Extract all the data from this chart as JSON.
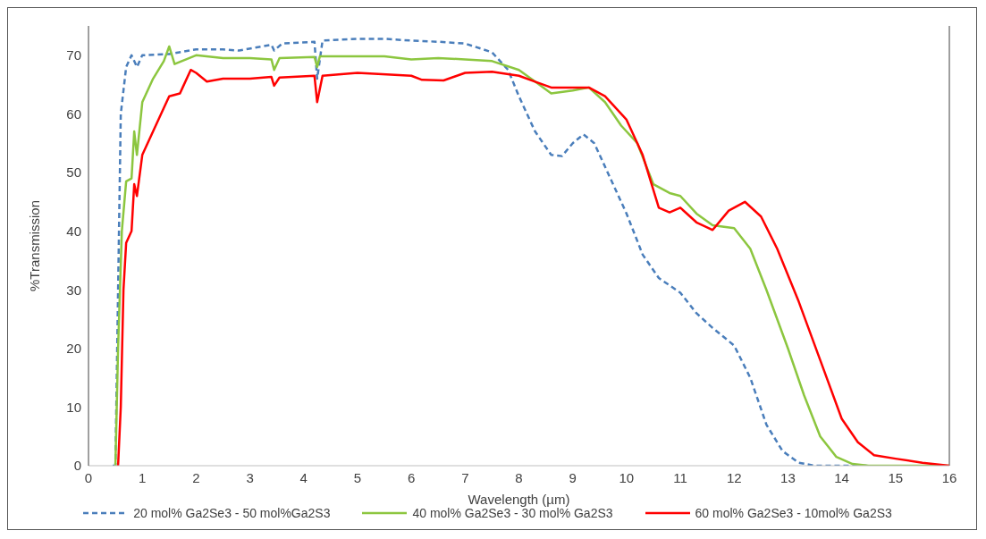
{
  "chart_data": {
    "type": "line",
    "xlabel": "Wavelength (µm)",
    "ylabel": "%Transmission",
    "xlim": [
      0,
      16
    ],
    "xticks": [
      0,
      1,
      2,
      3,
      4,
      5,
      6,
      7,
      8,
      9,
      10,
      11,
      12,
      13,
      14,
      15,
      16
    ],
    "ylim": [
      0,
      75
    ],
    "yticks": [
      0,
      10,
      20,
      30,
      40,
      50,
      60,
      70
    ],
    "grid": false,
    "legend": "bottom",
    "marker": "none",
    "series": [
      {
        "name": "20 mol% Ga2Se3 - 50 mol%Ga2S3",
        "color": "#4a7ebb",
        "line_style": "dashed",
        "x": [
          0.45,
          0.5,
          0.55,
          0.6,
          0.7,
          0.8,
          0.9,
          1.0,
          1.5,
          2,
          2.5,
          2.8,
          3.4,
          3.45,
          3.6,
          4.2,
          4.25,
          4.35,
          5,
          5.5,
          6,
          6.5,
          7,
          7.5,
          7.8,
          8,
          8.3,
          8.6,
          8.8,
          9,
          9.2,
          9.4,
          9.7,
          10,
          10.3,
          10.6,
          11,
          11.3,
          11.6,
          12,
          12.3,
          12.6,
          12.9,
          13.2,
          13.5,
          14,
          14.5
        ],
        "values": [
          0,
          0,
          30,
          60,
          68,
          70,
          68,
          70,
          70.2,
          71,
          71,
          70.8,
          71.8,
          70.8,
          72,
          72.3,
          66,
          72.5,
          72.8,
          72.8,
          72.5,
          72.3,
          72,
          70.5,
          67.5,
          63,
          57,
          53,
          52.8,
          55,
          56.5,
          55,
          49,
          43,
          36,
          32,
          29.5,
          26,
          23.5,
          20.5,
          15,
          7,
          2.5,
          0.5,
          0,
          0,
          0
        ]
      },
      {
        "name": "40 mol% Ga2Se3 - 30 mol% Ga2S3",
        "color": "#8cc63f",
        "line_style": "solid",
        "x": [
          0.5,
          0.55,
          0.62,
          0.7,
          0.8,
          0.85,
          0.9,
          1.0,
          1.2,
          1.4,
          1.5,
          1.6,
          2,
          2.5,
          3,
          3.4,
          3.45,
          3.55,
          4.2,
          4.25,
          4.3,
          5,
          5.5,
          6,
          6.5,
          7,
          7.5,
          8,
          8.3,
          8.6,
          9,
          9.3,
          9.6,
          9.9,
          10.2,
          10.5,
          10.8,
          11,
          11.3,
          11.6,
          12,
          12.3,
          12.6,
          13,
          13.3,
          13.6,
          13.9,
          14.2,
          14.5,
          15,
          16
        ],
        "values": [
          0,
          20,
          40,
          48.5,
          49,
          57,
          53,
          62,
          66,
          69,
          71.5,
          68.5,
          70,
          69.5,
          69.5,
          69.3,
          67.5,
          69.5,
          69.7,
          68,
          69.8,
          69.8,
          69.8,
          69.3,
          69.5,
          69.3,
          69,
          67.5,
          65.5,
          63.5,
          64,
          64.5,
          62,
          58,
          55,
          48,
          46.5,
          46,
          43,
          41,
          40.5,
          37,
          30,
          20,
          12,
          5,
          1.5,
          0.3,
          0,
          0,
          0
        ]
      },
      {
        "name": "60 mol% Ga2Se3 - 10mol% Ga2S3",
        "color": "#ff0000",
        "line_style": "solid",
        "x": [
          0.55,
          0.6,
          0.65,
          0.7,
          0.8,
          0.85,
          0.9,
          1.0,
          1.2,
          1.4,
          1.5,
          1.7,
          1.75,
          1.9,
          2.0,
          2.2,
          2.5,
          3,
          3.4,
          3.45,
          3.55,
          4.2,
          4.25,
          4.35,
          5,
          6,
          6.2,
          6.6,
          7,
          7.5,
          8,
          8.3,
          8.6,
          9,
          9.3,
          9.6,
          10,
          10.3,
          10.6,
          10.8,
          11,
          11.3,
          11.6,
          11.9,
          12.2,
          12.5,
          12.8,
          13.2,
          13.6,
          14,
          14.3,
          14.6,
          15,
          15.5,
          16
        ],
        "values": [
          0,
          10,
          30,
          38,
          40,
          48,
          46,
          53,
          57,
          61,
          63,
          63.5,
          64.5,
          67.5,
          67,
          65.5,
          66,
          66,
          66.3,
          64.8,
          66.2,
          66.5,
          62,
          66.5,
          67,
          66.5,
          65.8,
          65.7,
          67,
          67.2,
          66.5,
          65.5,
          64.5,
          64.5,
          64.5,
          63,
          59,
          53,
          44,
          43.2,
          44,
          41.5,
          40.2,
          43.5,
          45,
          42.5,
          37,
          28,
          18,
          8,
          4,
          1.8,
          1.2,
          0.5,
          0
        ]
      }
    ]
  }
}
